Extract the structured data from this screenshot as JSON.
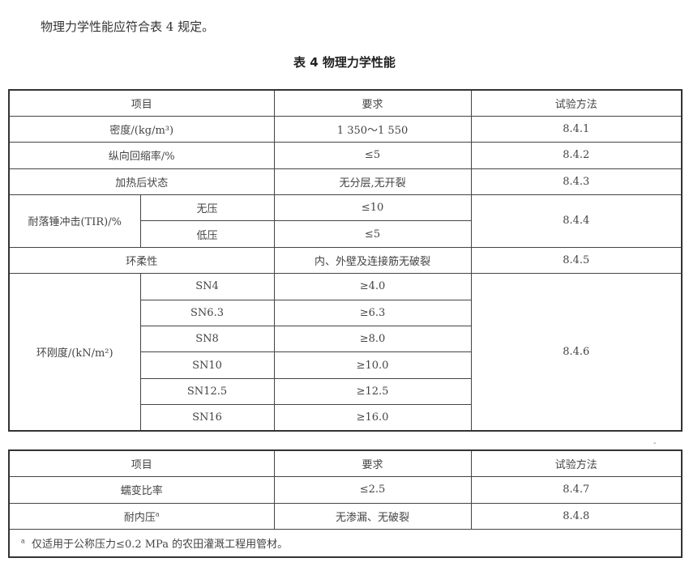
{
  "intro": "物理力学性能应符合表 4 规定。",
  "caption": "表 4   物理力学性能",
  "headers": {
    "item": "项目",
    "requirement": "要求",
    "method": "试验方法"
  },
  "rows": [
    {
      "item": "密度/(kg/m³)",
      "requirement": "1 350～1 550",
      "method": "8.4.1"
    },
    {
      "item": "纵向回缩率/%",
      "requirement": "≤5",
      "method": "8.4.2"
    },
    {
      "item": "加热后状态",
      "requirement": "无分层,无开裂",
      "method": "8.4.3"
    }
  ],
  "impact": {
    "item": "耐落锤冲击(TIR)/%",
    "method": "8.4.4",
    "sub": [
      {
        "label": "无压",
        "requirement": "≤10"
      },
      {
        "label": "低压",
        "requirement": "≤5"
      }
    ]
  },
  "flex": {
    "item": "环柔性",
    "requirement": "内、外壁及连接筋无破裂",
    "method": "8.4.5"
  },
  "stiffness": {
    "item": "环刚度/(kN/m²)",
    "method": "8.4.6",
    "sub": [
      {
        "label": "SN4",
        "requirement": "≥4.0"
      },
      {
        "label": "SN6.3",
        "requirement": "≥6.3"
      },
      {
        "label": "SN8",
        "requirement": "≥8.0"
      },
      {
        "label": "SN10",
        "requirement": "≥10.0"
      },
      {
        "label": "SN12.5",
        "requirement": "≥12.5"
      },
      {
        "label": "SN16",
        "requirement": "≥16.0"
      }
    ]
  },
  "rows2": [
    {
      "item": "蠕变比率",
      "requirement": "≤2.5",
      "method": "8.4.7"
    },
    {
      "item": "耐内压",
      "note_mark": "a",
      "requirement": "无渗漏、无破裂",
      "method": "8.4.8"
    }
  ],
  "footnote": {
    "mark": "a",
    "text": "仅适用于公称压力≤0.2 MPa 的农田灌溉工程用管材。"
  },
  "page_mark": "-"
}
